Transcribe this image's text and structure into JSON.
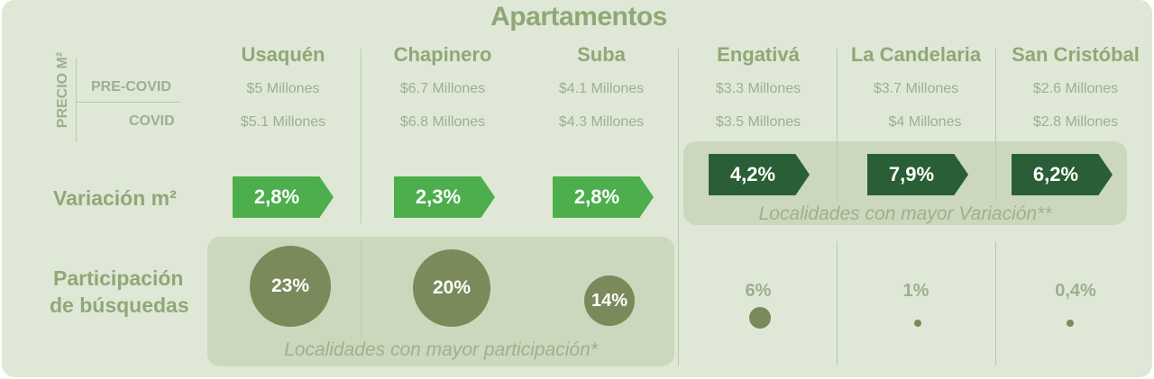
{
  "title": "Apartamentos",
  "side_label": {
    "vertical": "PRECIO M²",
    "pre": "PRE-COVID",
    "covid": "COVID"
  },
  "row_labels": {
    "variacion": "Variación m²",
    "participacion_1": "Participación",
    "participacion_2": "de búsquedas"
  },
  "localidades": [
    {
      "name": "Usaquén",
      "pre": "$5 Millones",
      "covid": "$5.1 Millones",
      "variacion": "2,8%",
      "participacion": "23%"
    },
    {
      "name": "Chapinero",
      "pre": "$6.7 Millones",
      "covid": "$6.8 Millones",
      "variacion": "2,3%",
      "participacion": "20%"
    },
    {
      "name": "Suba",
      "pre": "$4.1 Millones",
      "covid": "$4.3 Millones",
      "variacion": "2,8%",
      "participacion": "14%"
    },
    {
      "name": "Engativá",
      "pre": "$3.3 Millones",
      "covid": "$3.5 Millones",
      "variacion": "4,2%",
      "participacion": "6%"
    },
    {
      "name": "La Candelaria",
      "pre": "$3.7 Millones",
      "covid": "$4 Millones",
      "variacion": "7,9%",
      "participacion": "1%"
    },
    {
      "name": "San Cristóbal",
      "pre": "$2.6 Millones",
      "covid": "$2.8 Millones",
      "variacion": "6,2%",
      "participacion": "0,4%"
    }
  ],
  "box_labels": {
    "variacion": "Localidades con mayor Variación**",
    "participacion": "Localidades con mayor participación*"
  },
  "colors": {
    "background": "#dfe8d6",
    "label": "#8fa877",
    "tag_light": "#4cae4c",
    "tag_dark": "#2a5e36",
    "circle": "#7a8a5a",
    "highlight_box": "#cbd8bd"
  }
}
